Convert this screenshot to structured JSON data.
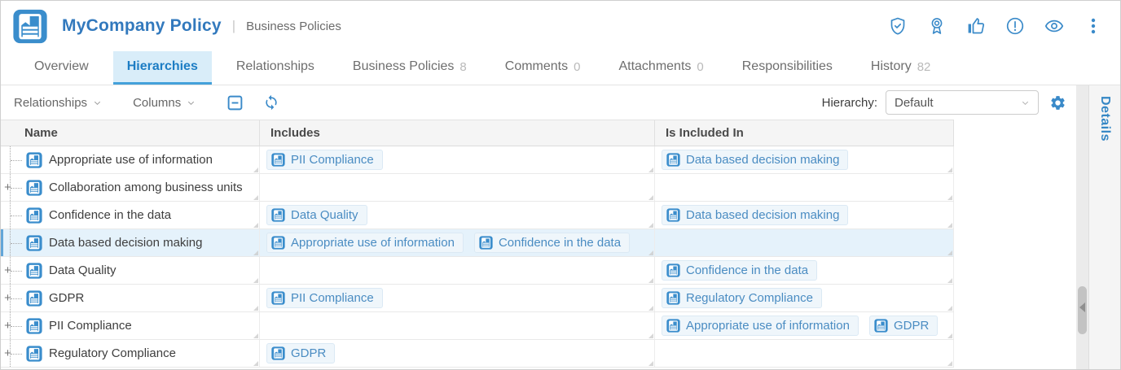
{
  "header": {
    "title": "MyCompany Policy",
    "separator": "|",
    "subtitle": "Business Policies",
    "logo_icon": "document-icon",
    "action_icons": [
      "shield-check-icon",
      "award-ribbon-icon",
      "thumbs-up-icon",
      "alert-circle-icon",
      "eye-icon",
      "kebab-menu-icon"
    ]
  },
  "tabs": [
    {
      "label": "Overview",
      "count": "",
      "active": false
    },
    {
      "label": "Hierarchies",
      "count": "",
      "active": true
    },
    {
      "label": "Relationships",
      "count": "",
      "active": false
    },
    {
      "label": "Business Policies",
      "count": "8",
      "active": false
    },
    {
      "label": "Comments",
      "count": "0",
      "active": false
    },
    {
      "label": "Attachments",
      "count": "0",
      "active": false
    },
    {
      "label": "Responsibilities",
      "count": "",
      "active": false
    },
    {
      "label": "History",
      "count": "82",
      "active": false
    }
  ],
  "toolbar": {
    "relationships_label": "Relationships",
    "columns_label": "Columns",
    "collapse_icon": "collapse-all-icon",
    "refresh_icon": "refresh-icon",
    "hierarchy_label": "Hierarchy:",
    "hierarchy_value": "Default",
    "settings_icon": "gear-icon"
  },
  "details_panel": {
    "label": "Details"
  },
  "table": {
    "columns": [
      "Name",
      "Includes",
      "Is Included In"
    ],
    "expander_glyph": "+",
    "rows": [
      {
        "name": "Appropriate use of information",
        "expandable": false,
        "selected": false,
        "includes": [
          "PII Compliance"
        ],
        "included_in": [
          "Data based decision making"
        ]
      },
      {
        "name": "Collaboration among business units",
        "expandable": true,
        "selected": false,
        "includes": [],
        "included_in": []
      },
      {
        "name": "Confidence in the data",
        "expandable": false,
        "selected": false,
        "includes": [
          "Data Quality"
        ],
        "included_in": [
          "Data based decision making"
        ]
      },
      {
        "name": "Data based decision making",
        "expandable": false,
        "selected": true,
        "includes": [
          "Appropriate use of information",
          "Confidence in the data"
        ],
        "included_in": []
      },
      {
        "name": "Data Quality",
        "expandable": true,
        "selected": false,
        "includes": [],
        "included_in": [
          "Confidence in the data"
        ]
      },
      {
        "name": "GDPR",
        "expandable": true,
        "selected": false,
        "includes": [
          "PII Compliance"
        ],
        "included_in": [
          "Regulatory Compliance"
        ]
      },
      {
        "name": "PII Compliance",
        "expandable": true,
        "selected": false,
        "includes": [],
        "included_in": [
          "Appropriate use of information",
          "GDPR"
        ]
      },
      {
        "name": "Regulatory Compliance",
        "expandable": true,
        "selected": false,
        "includes": [
          "GDPR"
        ],
        "included_in": []
      }
    ]
  },
  "colors": {
    "accent_blue": "#3a8ac9",
    "title_blue": "#3279bd",
    "active_tab_bg": "#d9edf9",
    "active_tab_text": "#1d7dc4",
    "active_tab_underline": "#44a1da",
    "selected_row_bg": "#e5f2fb",
    "selected_row_edge": "#62a6d9",
    "chip_bg": "#eff6fb",
    "chip_border": "#dbe9f4",
    "chip_text": "#4a8cc2",
    "doc_icon_blue": "#3a8dcc"
  }
}
